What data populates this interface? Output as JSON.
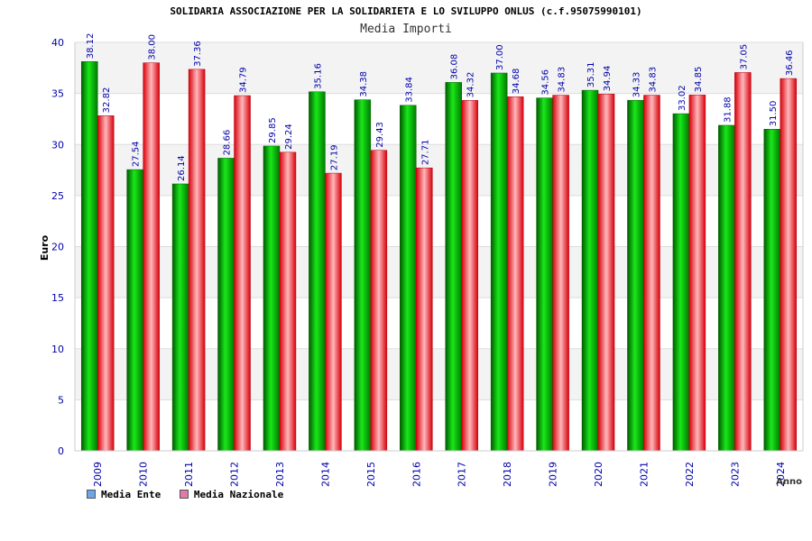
{
  "chart_data": {
    "type": "bar",
    "title": "SOLIDARIA ASSOCIAZIONE PER LA SOLIDARIETA E LO SVILUPPO ONLUS (c.f.95075990101)",
    "subtitle": "Media Importi",
    "xlabel": "Anno",
    "ylabel": "Euro",
    "ylim": [
      0,
      40
    ],
    "yticks": [
      0,
      5,
      10,
      15,
      20,
      25,
      30,
      35,
      40
    ],
    "categories": [
      "2009",
      "2010",
      "2011",
      "2012",
      "2013",
      "2014",
      "2015",
      "2016",
      "2017",
      "2018",
      "2019",
      "2020",
      "2021",
      "2022",
      "2023",
      "2024"
    ],
    "series": [
      {
        "name": "Media Ente",
        "color": "#00b000",
        "values": [
          38.12,
          27.54,
          26.14,
          28.66,
          29.85,
          35.16,
          34.38,
          33.84,
          36.08,
          37.0,
          34.56,
          35.31,
          34.33,
          33.02,
          31.88,
          31.5
        ],
        "labels": [
          "38.12",
          "27.54",
          "26.14",
          "28.66",
          "29.85",
          "35.16",
          "34.38",
          "33.84",
          "36.08",
          "37.00",
          "34.56",
          "35.31",
          "34.33",
          "33.02",
          "31.88",
          "31.50"
        ]
      },
      {
        "name": "Media Nazionale",
        "color": "#e01020",
        "values": [
          32.82,
          38.0,
          37.36,
          34.79,
          29.24,
          27.19,
          29.43,
          27.71,
          34.32,
          34.68,
          34.83,
          34.94,
          34.83,
          34.85,
          37.05,
          36.46
        ],
        "labels": [
          "32.82",
          "38.00",
          "37.36",
          "34.79",
          "29.24",
          "27.19",
          "29.43",
          "27.71",
          "34.32",
          "34.68",
          "34.83",
          "34.94",
          "34.83",
          "34.85",
          "37.05",
          "36.46"
        ]
      }
    ],
    "legend": {
      "position": "bottom-left",
      "items": [
        {
          "label": "Media Ente",
          "color": "#6aa6e8"
        },
        {
          "label": "Media Nazionale",
          "color": "#e07aa8"
        }
      ]
    },
    "grid": true
  }
}
